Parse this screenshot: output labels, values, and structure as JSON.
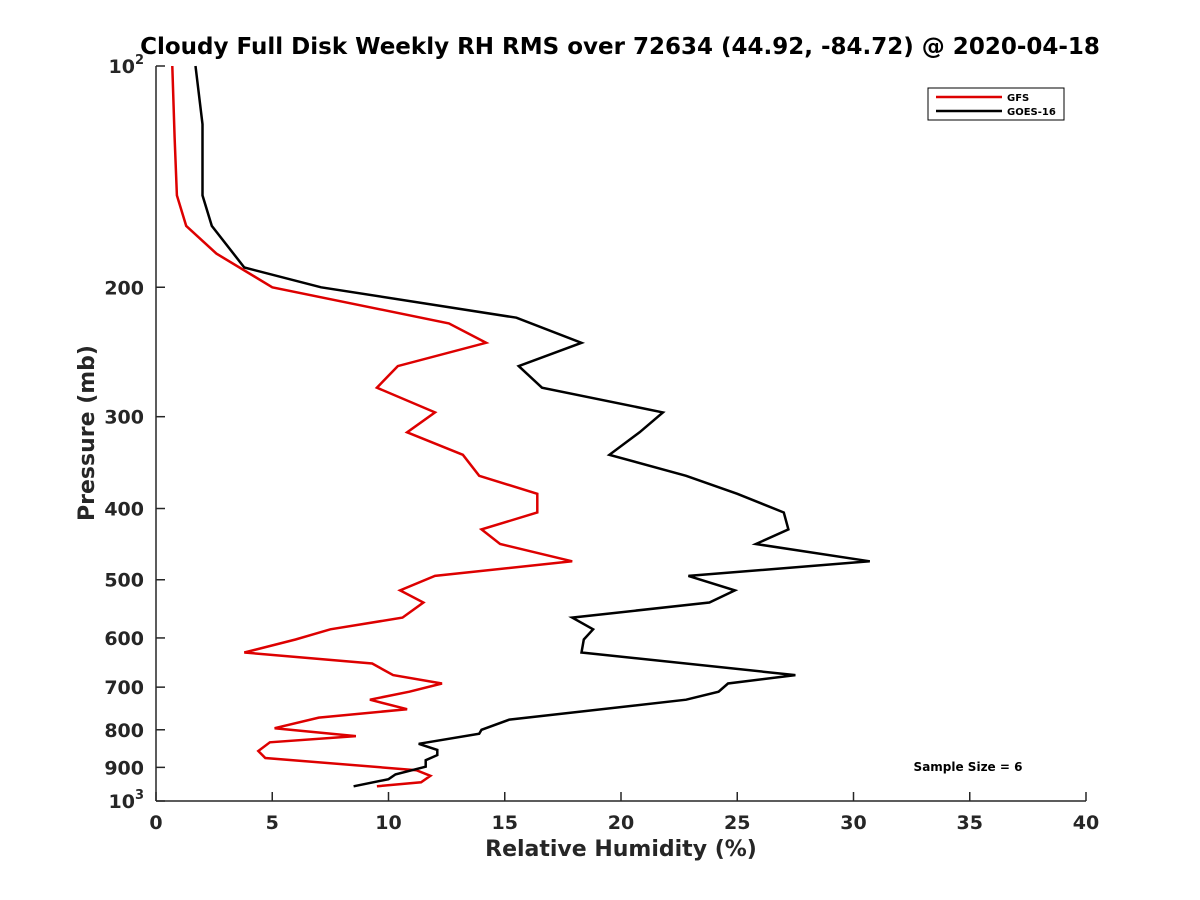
{
  "chart_data": {
    "type": "line",
    "title": "Cloudy Full Disk Weekly RH RMS over 72634 (44.92, -84.72) @ 2020-04-18",
    "xlabel": "Relative Humidity (%)",
    "ylabel": "Pressure (mb)",
    "xlim": [
      0,
      40
    ],
    "ylim": [
      100,
      1000
    ],
    "y_scale": "log",
    "y_reversed": true,
    "grid": false,
    "legend_position": "top-right",
    "x_ticks": [
      {
        "value": 0,
        "label": "0"
      },
      {
        "value": 5,
        "label": "5"
      },
      {
        "value": 10,
        "label": "10"
      },
      {
        "value": 15,
        "label": "15"
      },
      {
        "value": 20,
        "label": "20"
      },
      {
        "value": 25,
        "label": "25"
      },
      {
        "value": 30,
        "label": "30"
      },
      {
        "value": 35,
        "label": "35"
      },
      {
        "value": 40,
        "label": "40"
      }
    ],
    "y_ticks": [
      {
        "value": 100,
        "base": "10",
        "exp": "2"
      },
      {
        "value": 200,
        "label": "200"
      },
      {
        "value": 300,
        "label": "300"
      },
      {
        "value": 400,
        "label": "400"
      },
      {
        "value": 500,
        "label": "500"
      },
      {
        "value": 600,
        "label": "600"
      },
      {
        "value": 700,
        "label": "700"
      },
      {
        "value": 800,
        "label": "800"
      },
      {
        "value": 900,
        "label": "900"
      },
      {
        "value": 1000,
        "base": "10",
        "exp": "3"
      }
    ],
    "series": [
      {
        "name": "GFS",
        "color": "#dd0000",
        "points": [
          [
            0.7,
            100
          ],
          [
            0.8,
            125
          ],
          [
            0.9,
            150
          ],
          [
            1.3,
            165
          ],
          [
            2.6,
            180
          ],
          [
            5.0,
            200
          ],
          [
            12.6,
            224
          ],
          [
            14.2,
            238
          ],
          [
            10.4,
            256
          ],
          [
            9.5,
            274
          ],
          [
            12.0,
            296
          ],
          [
            10.8,
            315
          ],
          [
            13.2,
            338
          ],
          [
            13.9,
            361
          ],
          [
            16.4,
            382
          ],
          [
            16.4,
            405
          ],
          [
            14.0,
            427
          ],
          [
            14.8,
            447
          ],
          [
            17.9,
            472
          ],
          [
            12.0,
            494
          ],
          [
            10.5,
            517
          ],
          [
            11.5,
            537
          ],
          [
            10.6,
            563
          ],
          [
            7.5,
            584
          ],
          [
            6.0,
            603
          ],
          [
            3.8,
            628
          ],
          [
            9.3,
            650
          ],
          [
            10.2,
            674
          ],
          [
            12.3,
            692
          ],
          [
            10.9,
            710
          ],
          [
            9.2,
            728
          ],
          [
            10.8,
            750
          ],
          [
            7.0,
            770
          ],
          [
            5.1,
            796
          ],
          [
            8.6,
            816
          ],
          [
            4.9,
            832
          ],
          [
            4.4,
            855
          ],
          [
            4.7,
            874
          ],
          [
            11.2,
            908
          ],
          [
            11.8,
            924
          ],
          [
            11.4,
            943
          ],
          [
            9.5,
            955
          ]
        ]
      },
      {
        "name": "GOES-16",
        "color": "#000000",
        "points": [
          [
            1.7,
            100
          ],
          [
            2.0,
            120
          ],
          [
            2.0,
            150
          ],
          [
            2.4,
            165
          ],
          [
            3.8,
            188
          ],
          [
            7.1,
            200
          ],
          [
            15.5,
            220
          ],
          [
            18.3,
            238
          ],
          [
            15.6,
            256
          ],
          [
            16.6,
            274
          ],
          [
            21.8,
            296
          ],
          [
            20.8,
            315
          ],
          [
            19.5,
            338
          ],
          [
            22.8,
            361
          ],
          [
            25.0,
            382
          ],
          [
            27.0,
            405
          ],
          [
            27.2,
            427
          ],
          [
            25.8,
            447
          ],
          [
            30.7,
            472
          ],
          [
            22.9,
            494
          ],
          [
            24.9,
            517
          ],
          [
            23.8,
            537
          ],
          [
            17.9,
            563
          ],
          [
            18.8,
            584
          ],
          [
            18.4,
            603
          ],
          [
            18.3,
            628
          ],
          [
            27.5,
            674
          ],
          [
            24.6,
            692
          ],
          [
            24.2,
            710
          ],
          [
            22.8,
            728
          ],
          [
            15.2,
            775
          ],
          [
            14.0,
            800
          ],
          [
            13.9,
            810
          ],
          [
            11.3,
            836
          ],
          [
            12.1,
            852
          ],
          [
            12.1,
            866
          ],
          [
            11.6,
            880
          ],
          [
            11.6,
            898
          ],
          [
            10.3,
            920
          ],
          [
            10.0,
            934
          ],
          [
            8.5,
            955
          ]
        ]
      }
    ],
    "annotations": [
      "Sample Size = 6"
    ]
  }
}
